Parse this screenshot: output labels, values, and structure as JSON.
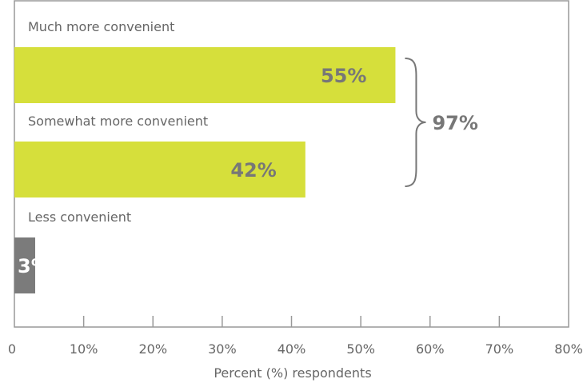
{
  "chart_data": {
    "type": "bar",
    "orientation": "horizontal",
    "categories": [
      "Much more convenient",
      "Somewhat more convenient",
      "Less convenient"
    ],
    "values": [
      55,
      42,
      3
    ],
    "value_labels": [
      "55%",
      "42%",
      "3%"
    ],
    "bar_colors": [
      "#d6df3b",
      "#d6df3b",
      "#7b7b7b"
    ],
    "xlabel": "Percent (%) respondents",
    "xlim": [
      0,
      80
    ],
    "xticks": [
      0,
      10,
      20,
      30,
      40,
      50,
      60,
      70,
      80
    ],
    "xtick_labels": [
      "0",
      "10%",
      "20%",
      "30%",
      "40%",
      "50%",
      "60%",
      "70%",
      "80%"
    ],
    "annotation": {
      "text": "97%",
      "spans_categories": [
        0,
        1
      ]
    },
    "grid": false
  }
}
